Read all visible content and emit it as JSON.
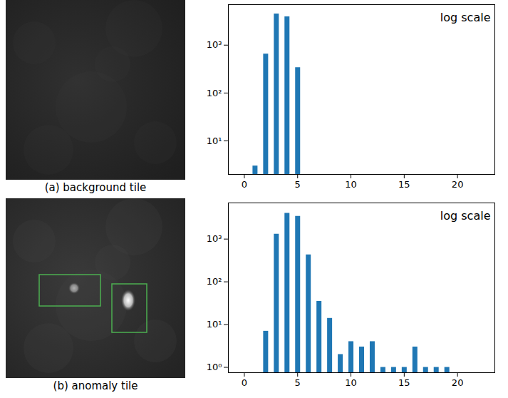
{
  "images": [
    {
      "caption": "(a) background tile"
    },
    {
      "caption": "(b) anomaly tile"
    }
  ],
  "chart_data": [
    {
      "type": "bar",
      "annotation": "log scale",
      "log": "y",
      "color": "#1f77b4",
      "x": [
        1,
        2,
        3,
        4,
        5
      ],
      "values": [
        3,
        650,
        4500,
        3900,
        340
      ],
      "xlim": [
        -1.5,
        23.5
      ],
      "xticks": [
        0,
        5,
        10,
        15,
        20
      ],
      "ylim": [
        2,
        7000
      ],
      "yticks": [
        {
          "value": 10,
          "label": "10¹"
        },
        {
          "value": 100,
          "label": "10²"
        },
        {
          "value": 1000,
          "label": "10³"
        }
      ]
    },
    {
      "type": "bar",
      "annotation": "log scale",
      "log": "y",
      "color": "#1f77b4",
      "x": [
        2,
        3,
        4,
        5,
        6,
        7,
        8,
        9,
        10,
        11,
        12,
        13,
        14,
        15,
        16,
        17,
        18,
        19
      ],
      "values": [
        7,
        1300,
        4000,
        3400,
        430,
        35,
        14,
        2,
        4,
        3,
        4,
        1,
        1,
        1,
        3,
        1,
        1,
        1
      ],
      "xlim": [
        -1.5,
        23.5
      ],
      "xticks": [
        0,
        5,
        10,
        15,
        20
      ],
      "ylim": [
        0.75,
        7000
      ],
      "yticks": [
        {
          "value": 1,
          "label": "10⁰"
        },
        {
          "value": 10,
          "label": "10¹"
        },
        {
          "value": 100,
          "label": "10²"
        },
        {
          "value": 1000,
          "label": "10³"
        }
      ]
    }
  ]
}
